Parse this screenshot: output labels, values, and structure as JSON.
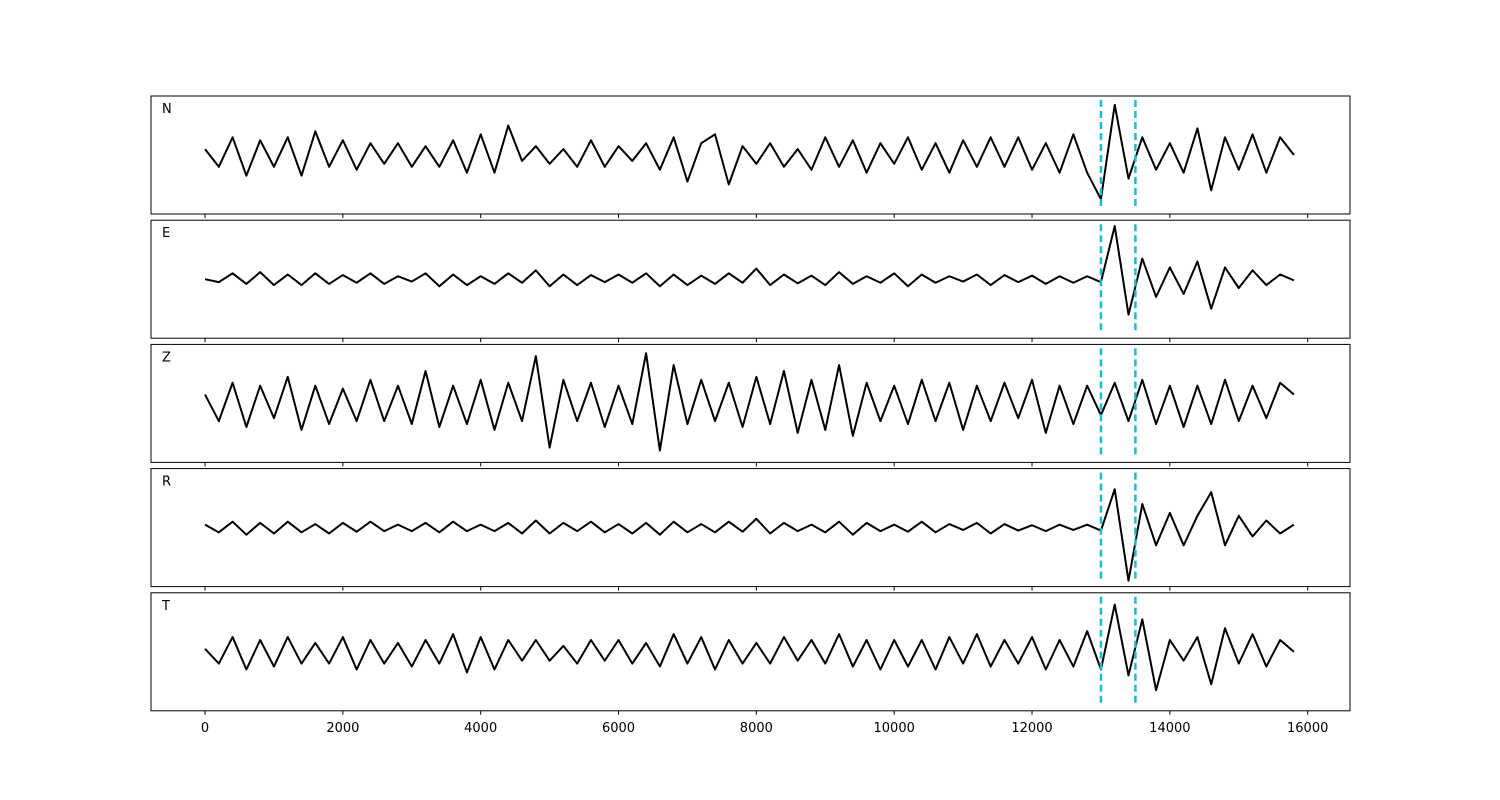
{
  "chart_data": {
    "type": "line",
    "x": [
      0,
      200,
      400,
      600,
      800,
      1000,
      1200,
      1400,
      1600,
      1800,
      2000,
      2200,
      2400,
      2600,
      2800,
      3000,
      3200,
      3400,
      3600,
      3800,
      4000,
      4200,
      4400,
      4600,
      4800,
      5000,
      5200,
      5400,
      5600,
      5800,
      6000,
      6200,
      6400,
      6600,
      6800,
      7000,
      7200,
      7400,
      7600,
      7800,
      8000,
      8200,
      8400,
      8600,
      8800,
      9000,
      9200,
      9400,
      9600,
      9800,
      10000,
      10200,
      10400,
      10600,
      10800,
      11000,
      11200,
      11400,
      11600,
      11800,
      12000,
      12200,
      12400,
      12600,
      12800,
      13000,
      13200,
      13400,
      13600,
      13800,
      14000,
      14200,
      14400,
      14600,
      14800,
      15000,
      15200,
      15400,
      15600,
      15800
    ],
    "series": [
      {
        "name": "N",
        "color": "#000000",
        "values": [
          0.1,
          -0.2,
          0.3,
          -0.35,
          0.25,
          -0.2,
          0.3,
          -0.35,
          0.4,
          -0.2,
          0.25,
          -0.25,
          0.2,
          -0.15,
          0.2,
          -0.2,
          0.15,
          -0.2,
          0.25,
          -0.3,
          0.35,
          -0.3,
          0.5,
          -0.1,
          0.15,
          -0.15,
          0.1,
          -0.2,
          0.25,
          -0.2,
          0.15,
          -0.1,
          0.2,
          -0.25,
          0.3,
          -0.45,
          0.2,
          0.35,
          -0.5,
          0.15,
          -0.15,
          0.2,
          -0.2,
          0.1,
          -0.25,
          0.3,
          -0.2,
          0.25,
          -0.3,
          0.2,
          -0.15,
          0.3,
          -0.25,
          0.2,
          -0.3,
          0.25,
          -0.2,
          0.3,
          -0.2,
          0.3,
          -0.25,
          0.2,
          -0.3,
          0.35,
          -0.3,
          -0.75,
          0.85,
          -0.4,
          0.3,
          -0.25,
          0.2,
          -0.3,
          0.45,
          -0.6,
          0.3,
          -0.25,
          0.35,
          -0.3,
          0.3,
          0.0
        ]
      },
      {
        "name": "E",
        "color": "#000000",
        "values": [
          0.0,
          -0.05,
          0.1,
          -0.08,
          0.12,
          -0.1,
          0.08,
          -0.1,
          0.1,
          -0.08,
          0.07,
          -0.06,
          0.1,
          -0.08,
          0.05,
          -0.04,
          0.1,
          -0.12,
          0.08,
          -0.1,
          0.05,
          -0.08,
          0.1,
          -0.06,
          0.15,
          -0.12,
          0.08,
          -0.1,
          0.07,
          -0.05,
          0.08,
          -0.06,
          0.1,
          -0.12,
          0.08,
          -0.1,
          0.06,
          -0.08,
          0.1,
          -0.06,
          0.18,
          -0.1,
          0.08,
          -0.07,
          0.06,
          -0.1,
          0.12,
          -0.08,
          0.05,
          -0.06,
          0.1,
          -0.12,
          0.08,
          -0.06,
          0.05,
          -0.04,
          0.08,
          -0.1,
          0.07,
          -0.05,
          0.06,
          -0.08,
          0.05,
          -0.06,
          0.05,
          -0.05,
          0.9,
          -0.6,
          0.35,
          -0.3,
          0.2,
          -0.25,
          0.3,
          -0.5,
          0.2,
          -0.15,
          0.15,
          -0.1,
          0.08,
          -0.02
        ]
      },
      {
        "name": "Z",
        "color": "#000000",
        "values": [
          0.15,
          -0.3,
          0.35,
          -0.4,
          0.3,
          -0.25,
          0.45,
          -0.45,
          0.3,
          -0.35,
          0.25,
          -0.3,
          0.4,
          -0.3,
          0.3,
          -0.35,
          0.55,
          -0.4,
          0.3,
          -0.35,
          0.4,
          -0.45,
          0.35,
          -0.3,
          0.8,
          -0.75,
          0.4,
          -0.3,
          0.35,
          -0.4,
          0.3,
          -0.35,
          0.85,
          -0.8,
          0.65,
          -0.35,
          0.4,
          -0.3,
          0.35,
          -0.4,
          0.45,
          -0.35,
          0.55,
          -0.5,
          0.4,
          -0.45,
          0.65,
          -0.55,
          0.35,
          -0.3,
          0.3,
          -0.35,
          0.4,
          -0.3,
          0.35,
          -0.45,
          0.3,
          -0.3,
          0.35,
          -0.25,
          0.4,
          -0.5,
          0.3,
          -0.35,
          0.3,
          -0.2,
          0.35,
          -0.3,
          0.4,
          -0.35,
          0.3,
          -0.4,
          0.3,
          -0.35,
          0.4,
          -0.3,
          0.3,
          -0.25,
          0.35,
          0.15
        ]
      },
      {
        "name": "R",
        "color": "#000000",
        "values": [
          0.05,
          -0.08,
          0.1,
          -0.12,
          0.08,
          -0.1,
          0.1,
          -0.08,
          0.06,
          -0.1,
          0.08,
          -0.07,
          0.1,
          -0.06,
          0.05,
          -0.06,
          0.08,
          -0.08,
          0.1,
          -0.06,
          0.05,
          -0.06,
          0.08,
          -0.1,
          0.12,
          -0.1,
          0.08,
          -0.06,
          0.1,
          -0.08,
          0.06,
          -0.1,
          0.08,
          -0.12,
          0.1,
          -0.08,
          0.06,
          -0.08,
          0.1,
          -0.07,
          0.15,
          -0.1,
          0.08,
          -0.06,
          0.05,
          -0.08,
          0.1,
          -0.12,
          0.08,
          -0.06,
          0.05,
          -0.07,
          0.1,
          -0.08,
          0.06,
          -0.04,
          0.08,
          -0.1,
          0.06,
          -0.05,
          0.04,
          -0.06,
          0.05,
          -0.04,
          0.05,
          -0.05,
          0.65,
          -0.9,
          0.4,
          -0.3,
          0.25,
          -0.3,
          0.2,
          0.6,
          -0.3,
          0.2,
          -0.15,
          0.12,
          -0.1,
          0.05
        ]
      },
      {
        "name": "T",
        "color": "#000000",
        "values": [
          0.05,
          -0.2,
          0.25,
          -0.3,
          0.2,
          -0.25,
          0.25,
          -0.2,
          0.15,
          -0.2,
          0.25,
          -0.3,
          0.2,
          -0.2,
          0.15,
          -0.25,
          0.2,
          -0.2,
          0.3,
          -0.35,
          0.25,
          -0.3,
          0.2,
          -0.15,
          0.2,
          -0.15,
          0.1,
          -0.2,
          0.2,
          -0.15,
          0.2,
          -0.2,
          0.15,
          -0.25,
          0.3,
          -0.2,
          0.25,
          -0.3,
          0.2,
          -0.2,
          0.15,
          -0.2,
          0.25,
          -0.15,
          0.2,
          -0.2,
          0.3,
          -0.25,
          0.2,
          -0.3,
          0.2,
          -0.25,
          0.2,
          -0.3,
          0.25,
          -0.2,
          0.3,
          -0.25,
          0.2,
          -0.2,
          0.25,
          -0.3,
          0.2,
          -0.25,
          0.35,
          -0.3,
          0.8,
          -0.4,
          0.55,
          -0.65,
          0.2,
          -0.15,
          0.25,
          -0.55,
          0.4,
          -0.2,
          0.3,
          -0.25,
          0.2,
          0.0
        ]
      }
    ],
    "xlim": [
      -784,
      16614
    ],
    "ylim": [
      -1,
      1
    ],
    "xticks": [
      0,
      2000,
      4000,
      6000,
      8000,
      10000,
      12000,
      14000,
      16000
    ],
    "markers": [
      13000,
      13500
    ],
    "marker_color": "#17becf"
  }
}
